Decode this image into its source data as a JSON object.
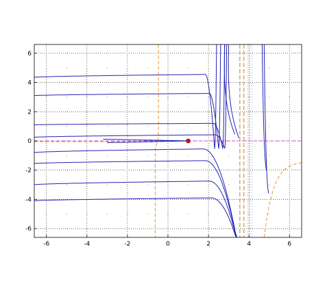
{
  "chart_data": {
    "type": "line",
    "title": "",
    "xlabel": "",
    "ylabel": "",
    "xlim": [
      -6.6,
      6.6
    ],
    "ylim": [
      -6.6,
      6.6
    ],
    "grid": true,
    "x_ticks": [
      -6,
      -4,
      -2,
      0,
      2,
      4,
      6
    ],
    "y_ticks": [
      -6,
      -4,
      -2,
      0,
      2,
      4,
      6
    ],
    "x_tick_labels": [
      "-6",
      "-4",
      "-2",
      "0",
      "2",
      "4",
      "6"
    ],
    "y_tick_labels": [
      "-6",
      "-4",
      "-2",
      "0",
      "2",
      "4",
      "6"
    ],
    "colors": {
      "trajectory": "#2323b4",
      "nullcline": "#e8962a",
      "horizontal_line": "#e040e0",
      "vertical_line": "#cc7a1a",
      "equilibrium": "#d01010",
      "grid": "#000000"
    },
    "equilibrium_point": {
      "x": 1.0,
      "y": 0.0
    },
    "vertical_lines_x": [
      3.55,
      3.75
    ],
    "left_trajectories": [
      {
        "y0": 4.35,
        "ymax": 4.55,
        "xturn": 1.85,
        "dir": "up"
      },
      {
        "y0": 3.1,
        "ymax": 3.25,
        "xturn": 2.05,
        "dir": "up"
      },
      {
        "y0": 1.1,
        "ymax": 1.2,
        "xturn": 2.25,
        "dir": "up"
      },
      {
        "y0": 0.25,
        "ymax": 0.42,
        "xturn": 2.35,
        "dir": "up"
      },
      {
        "y0": -0.8,
        "ymax": -0.55,
        "xturn": 1.75,
        "dir": "down"
      },
      {
        "y0": -1.55,
        "ymax": -1.35,
        "xturn": 1.85,
        "dir": "down"
      },
      {
        "y0": -3.0,
        "ymax": -2.75,
        "xturn": 2.05,
        "dir": "down"
      },
      {
        "y0": -4.1,
        "ymax": -3.9,
        "xturn": 2.15,
        "dir": "down"
      }
    ],
    "right_trajectories": [
      {
        "xmin": 4.95,
        "ymin": -2.2,
        "ytop": 6.6,
        "yright": -1.5
      },
      {
        "xmin": 5.05,
        "ymin": -3.8,
        "ytop": 6.6,
        "yright": -1.1
      }
    ]
  }
}
